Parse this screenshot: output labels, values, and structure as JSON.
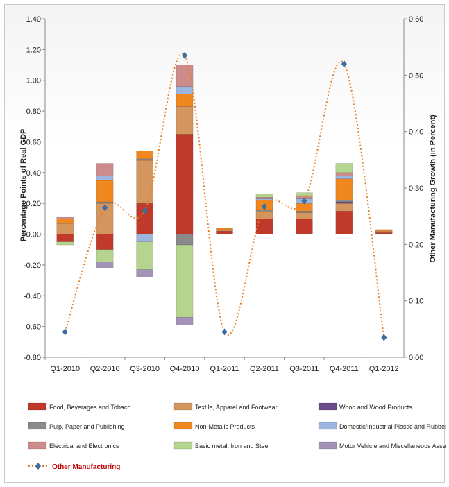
{
  "chart_data": {
    "type": "bar",
    "subtype": "stacked-bar-with-line",
    "title": "",
    "categories": [
      "Q1-2010",
      "Q2-2010",
      "Q3-2010",
      "Q4-2010",
      "Q1-2011",
      "Q2-2011",
      "Q3-2011",
      "Q4-2011",
      "Q1-2012"
    ],
    "ylabel": "Percentage Points of Real GDP",
    "y2label": "Other Manufacturing  Growth (in Percent)",
    "ylim": [
      -0.8,
      1.4
    ],
    "y2lim": [
      0.0,
      0.6
    ],
    "yticks": [
      "-0.80",
      "-0.60",
      "-0.40",
      "-0.20",
      "0.00",
      "0.20",
      "0.40",
      "0.60",
      "0.80",
      "1.00",
      "1.20",
      "1.40"
    ],
    "y2ticks": [
      "0.00",
      "0.10",
      "0.20",
      "0.30",
      "0.40",
      "0.50",
      "0.60"
    ],
    "grid": false,
    "legend_position": "bottom",
    "series": [
      {
        "name": "Food, Beverages and Tobaco",
        "color": "#c0392b",
        "values": [
          -0.05,
          -0.1,
          0.2,
          0.65,
          0.02,
          0.1,
          0.1,
          0.15,
          0.01
        ]
      },
      {
        "name": "Textile, Apparel and Footwear",
        "color": "#d4955e",
        "values": [
          0.07,
          0.2,
          0.28,
          0.18,
          0.01,
          0.05,
          0.04,
          0.05,
          0.01
        ]
      },
      {
        "name": "Wood and Wood Products",
        "color": "#6b4c8a",
        "values": [
          0.0,
          0.0,
          0.0,
          0.0,
          0.0,
          0.0,
          0.0,
          0.01,
          0.0
        ]
      },
      {
        "name": "Pulp, Paper and Publishing",
        "color": "#8a8a8a",
        "values": [
          0.0,
          0.01,
          0.01,
          -0.07,
          0.0,
          0.01,
          0.01,
          0.01,
          0.0
        ]
      },
      {
        "name": "Non-Metalic Products",
        "color": "#f0871f",
        "values": [
          0.03,
          0.14,
          0.05,
          0.08,
          0.01,
          0.06,
          0.05,
          0.14,
          0.01
        ]
      },
      {
        "name": "Domestic/Industrial Plastic and Rubber",
        "color": "#9bb7df",
        "values": [
          0.0,
          0.03,
          -0.05,
          0.05,
          0.0,
          0.01,
          0.03,
          0.02,
          0.0
        ]
      },
      {
        "name": "Electrical and Electronics",
        "color": "#cd8b8b",
        "values": [
          0.01,
          0.08,
          0.0,
          0.14,
          0.0,
          0.01,
          0.02,
          0.02,
          0.0
        ]
      },
      {
        "name": "Basic metal, Iron and Steel",
        "color": "#b5d58e",
        "values": [
          -0.02,
          -0.08,
          -0.18,
          -0.47,
          0.0,
          0.02,
          0.02,
          0.06,
          0.0
        ]
      },
      {
        "name": "Motor Vehicle and Miscellaneous Assembly",
        "color": "#a393b8",
        "values": [
          0.0,
          -0.04,
          -0.05,
          -0.05,
          0.0,
          0.0,
          0.0,
          0.0,
          0.0
        ]
      }
    ],
    "line_series": {
      "name": "Other Manufacturing",
      "axis": "right",
      "color": "#e67e22",
      "marker_color": "#3a6ea5",
      "values": [
        0.045,
        0.265,
        0.26,
        0.535,
        0.045,
        0.267,
        0.277,
        0.52,
        0.035
      ]
    }
  }
}
